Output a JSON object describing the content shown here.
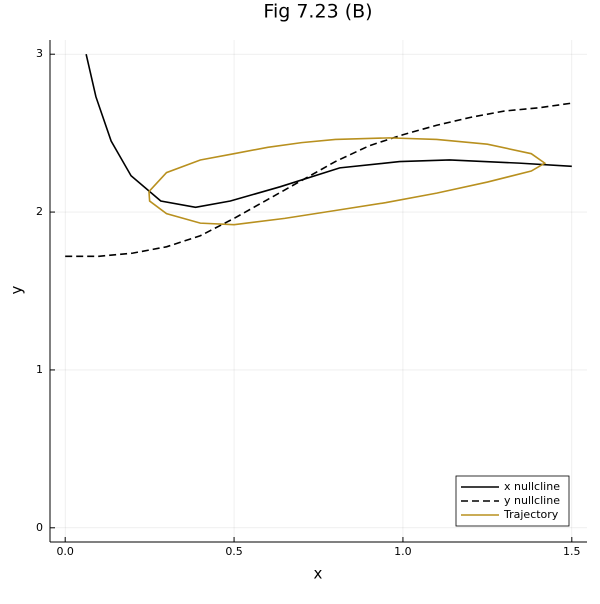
{
  "chart_data": {
    "type": "line",
    "title": "Fig 7.23 (B)",
    "x_label": "x",
    "y_label": "y",
    "xlim": [
      -0.045,
      1.545
    ],
    "ylim": [
      -0.09,
      3.09
    ],
    "xticks": [
      {
        "value": 0,
        "label": "0.0"
      },
      0.5,
      {
        "value": 1,
        "label": "1.0"
      },
      1.5
    ],
    "yticks": [
      0,
      1,
      2,
      3
    ],
    "grid": true,
    "legend": "bottom right",
    "series": [
      {
        "name": "x nullcline",
        "color": "#000000",
        "dash": false,
        "x": [
          0.062,
          0.091,
          0.136,
          0.195,
          0.283,
          0.386,
          0.489,
          0.636,
          0.813,
          0.99,
          1.138,
          1.344,
          1.5
        ],
        "values": [
          3.0,
          2.73,
          2.45,
          2.23,
          2.07,
          2.03,
          2.07,
          2.16,
          2.28,
          2.32,
          2.33,
          2.31,
          2.29
        ]
      },
      {
        "name": "y nullcline",
        "color": "#000000",
        "dash": true,
        "x": [
          0,
          0.1,
          0.2,
          0.3,
          0.4,
          0.5,
          0.6,
          0.7,
          0.8,
          0.9,
          1.0,
          1.1,
          1.2,
          1.3,
          1.4,
          1.5
        ],
        "values": [
          1.72,
          1.72,
          1.74,
          1.78,
          1.85,
          1.96,
          2.08,
          2.2,
          2.32,
          2.42,
          2.49,
          2.55,
          2.6,
          2.64,
          2.66,
          2.69
        ]
      },
      {
        "name": "Trajectory",
        "color": "#b8901f",
        "dash": false,
        "x": [
          0.248,
          0.3,
          0.4,
          0.5,
          0.6,
          0.7,
          0.8,
          0.96,
          1.1,
          1.25,
          1.38,
          1.42,
          1.38,
          1.25,
          1.1,
          0.95,
          0.8,
          0.65,
          0.5,
          0.4,
          0.3,
          0.25,
          0.248
        ],
        "values": [
          2.13,
          2.25,
          2.33,
          2.37,
          2.41,
          2.44,
          2.46,
          2.47,
          2.46,
          2.43,
          2.37,
          2.31,
          2.26,
          2.19,
          2.12,
          2.06,
          2.01,
          1.96,
          1.92,
          1.93,
          1.99,
          2.07,
          2.13
        ]
      }
    ]
  }
}
